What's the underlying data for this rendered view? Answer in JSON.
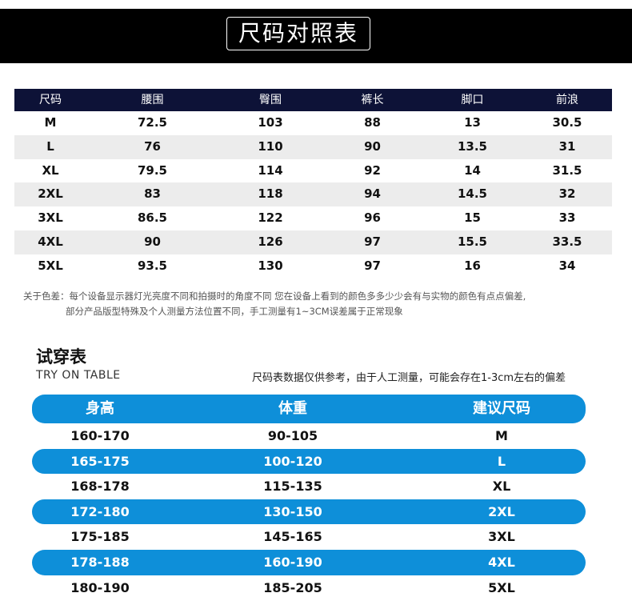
{
  "header": {
    "title": "尺码对照表"
  },
  "size_table": {
    "columns": [
      "尺码",
      "腰围",
      "臀围",
      "裤长",
      "脚口",
      "前浪"
    ],
    "rows": [
      [
        "M",
        "72.5",
        "103",
        "88",
        "13",
        "30.5"
      ],
      [
        "L",
        "76",
        "110",
        "90",
        "13.5",
        "31"
      ],
      [
        "XL",
        "79.5",
        "114",
        "92",
        "14",
        "31.5"
      ],
      [
        "2XL",
        "83",
        "118",
        "94",
        "14.5",
        "32"
      ],
      [
        "3XL",
        "86.5",
        "122",
        "96",
        "15",
        "33"
      ],
      [
        "4XL",
        "90",
        "126",
        "97",
        "15.5",
        "33.5"
      ],
      [
        "5XL",
        "93.5",
        "130",
        "97",
        "16",
        "34"
      ]
    ]
  },
  "note": {
    "line1": "关于色差：每个设备显示器灯光亮度不同和拍摄时的角度不同 您在设备上看到的颜色多多少少会有与实物的颜色有点点偏差,",
    "line2": "部分产品版型特殊及个人测量方法位置不同，手工测量有1~3CM误差属于正常现象"
  },
  "try_on": {
    "title": "试穿表",
    "subtitle": "TRY ON TABLE",
    "disclaimer": "尺码表数据仅供参考，由于人工测量，可能会存在1-3cm左右的偏差",
    "columns": [
      "身高",
      "体重",
      "建议尺码"
    ],
    "rows": [
      [
        "160-170",
        "90-105",
        "M"
      ],
      [
        "165-175",
        "100-120",
        "L"
      ],
      [
        "168-178",
        "115-135",
        "XL"
      ],
      [
        "172-180",
        "130-150",
        "2XL"
      ],
      [
        "175-185",
        "145-165",
        "3XL"
      ],
      [
        "178-188",
        "160-190",
        "4XL"
      ],
      [
        "180-190",
        "185-205",
        "5XL"
      ]
    ]
  },
  "colors": {
    "header_bg": "#000000",
    "table_header_bg": "#0d1237",
    "stripe": "#ececec",
    "accent_blue": "#0e8fd9"
  }
}
